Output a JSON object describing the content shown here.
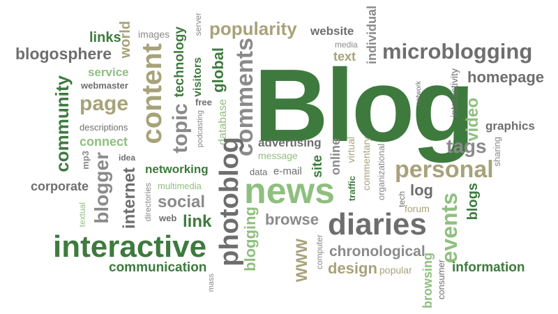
{
  "words": {
    "blog": "Blog",
    "news": "news",
    "interactive": "interactive",
    "diaries": "diaries",
    "personal": "personal",
    "microblogging": "microblogging",
    "content": "content",
    "photoblog": "photoblog",
    "comments": "comments",
    "popularity": "popularity",
    "website": "website",
    "blogosphere": "blogosphere",
    "community": "community",
    "page": "page",
    "connect": "connect",
    "topic": "topic",
    "technology": "technology",
    "links": "links",
    "world": "world",
    "images": "images",
    "server": "server",
    "visitors": "visitors",
    "global": "global",
    "media": "media",
    "text": "text",
    "individual": "individual",
    "service": "service",
    "webmaster": "webmaster",
    "free": "free",
    "database": "database",
    "podcasting": "podcasting",
    "descriptions": "descriptions",
    "idea": "idea",
    "mp3": "mp3",
    "blogger": "blogger",
    "corporate": "corporate",
    "internet": "internet",
    "networking": "networking",
    "multimedia": "multimedia",
    "social": "social",
    "directories": "directories",
    "textual": "textual",
    "web": "web",
    "link": "link",
    "advertising": "advertising",
    "message": "message",
    "data": "data",
    "email": "e-mail",
    "site": "site",
    "online": "online",
    "virtual": "virtual",
    "commentary": "commentary",
    "traffic": "traffic",
    "organizational": "organizational",
    "tech": "tech",
    "log": "log",
    "forum": "forum",
    "events": "events",
    "blogs": "blogs",
    "tags": "tags",
    "video": "video",
    "sharing": "sharing",
    "graphics": "graphics",
    "interactivity": "interactivity",
    "network": "network",
    "homepage": "homepage",
    "browse": "browse",
    "blogging": "blogging",
    "www": "WWW",
    "computer": "computer",
    "chronological": "chronological",
    "design": "design",
    "popular": "popular",
    "browsing": "browsing",
    "consumer": "consumer",
    "information": "information",
    "communication": "communication",
    "mass": "mass"
  }
}
